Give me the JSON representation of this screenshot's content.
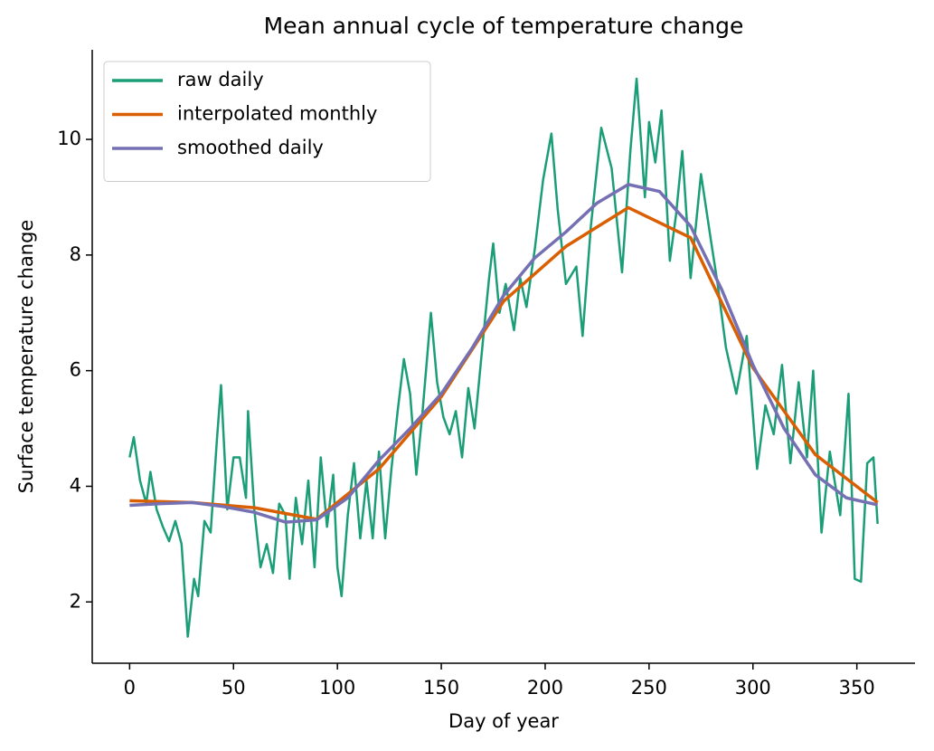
{
  "chart_data": {
    "type": "line",
    "title": "Mean annual cycle of temperature change",
    "xlabel": "Day of year",
    "ylabel": "Surface temperature change",
    "xlim": [
      -18,
      378
    ],
    "ylim": [
      0.94,
      11.55
    ],
    "xticks": [
      0,
      50,
      100,
      150,
      200,
      250,
      300,
      350
    ],
    "yticks": [
      2,
      4,
      6,
      8,
      10
    ],
    "legend": "upper left",
    "series": [
      {
        "name": "raw daily",
        "color": "#1b9e77",
        "x": [
          0,
          2,
          5,
          8,
          10,
          13,
          16,
          19,
          22,
          25,
          28,
          31,
          33,
          36,
          39,
          42,
          44,
          47,
          50,
          53,
          56,
          57,
          60,
          63,
          66,
          69,
          72,
          75,
          77,
          80,
          83,
          86,
          89,
          92,
          95,
          98,
          100,
          102,
          105,
          108,
          111,
          114,
          117,
          120,
          123,
          126,
          129,
          132,
          135,
          138,
          141,
          145,
          148,
          151,
          154,
          157,
          160,
          163,
          166,
          170,
          173,
          175,
          178,
          181,
          185,
          188,
          191,
          195,
          199,
          203,
          206,
          210,
          215,
          218,
          222,
          227,
          232,
          237,
          241,
          244,
          248,
          250,
          253,
          256,
          260,
          263,
          266,
          270,
          275,
          280,
          283,
          287,
          292,
          297,
          302,
          306,
          310,
          314,
          318,
          322,
          326,
          329,
          333,
          337,
          342,
          346,
          349,
          352,
          355,
          358,
          360
        ],
        "values": [
          4.5,
          4.85,
          4.1,
          3.7,
          4.25,
          3.6,
          3.3,
          3.05,
          3.4,
          3.0,
          1.4,
          2.4,
          2.1,
          3.4,
          3.2,
          4.8,
          5.75,
          3.6,
          4.5,
          4.5,
          3.8,
          5.3,
          3.6,
          2.6,
          3.0,
          2.5,
          3.7,
          3.5,
          2.4,
          3.8,
          3.0,
          4.1,
          2.6,
          4.5,
          3.3,
          4.2,
          2.6,
          2.1,
          3.5,
          4.4,
          3.1,
          4.1,
          3.1,
          4.6,
          3.1,
          4.3,
          5.3,
          6.2,
          5.6,
          4.2,
          5.3,
          7.0,
          5.8,
          5.2,
          4.9,
          5.3,
          4.5,
          5.7,
          5.0,
          6.5,
          7.6,
          8.2,
          7.0,
          7.5,
          6.7,
          7.6,
          7.1,
          8.1,
          9.3,
          10.1,
          8.8,
          7.5,
          7.8,
          6.6,
          8.5,
          10.2,
          9.5,
          7.7,
          9.8,
          11.05,
          9.0,
          10.3,
          9.6,
          10.5,
          7.9,
          8.7,
          9.8,
          7.6,
          9.4,
          8.2,
          7.5,
          6.4,
          5.6,
          6.6,
          4.3,
          5.4,
          4.9,
          6.1,
          4.4,
          5.8,
          4.5,
          6.0,
          3.2,
          4.6,
          3.5,
          5.6,
          2.4,
          2.35,
          4.4,
          4.5,
          3.35
        ]
      },
      {
        "name": "interpolated monthly",
        "color": "#d95f02",
        "x": [
          0,
          30,
          60,
          90,
          120,
          150,
          180,
          210,
          240,
          270,
          300,
          330,
          360
        ],
        "values": [
          3.75,
          3.72,
          3.63,
          3.43,
          4.3,
          5.55,
          7.2,
          8.15,
          8.82,
          8.3,
          6.05,
          4.55,
          3.72
        ]
      },
      {
        "name": "smoothed daily",
        "color": "#7570b3",
        "x": [
          0,
          15,
          30,
          45,
          60,
          75,
          90,
          105,
          120,
          135,
          150,
          165,
          180,
          195,
          210,
          225,
          240,
          255,
          270,
          285,
          300,
          315,
          330,
          345,
          360
        ],
        "values": [
          3.67,
          3.7,
          3.72,
          3.65,
          3.55,
          3.38,
          3.42,
          3.8,
          4.45,
          5.0,
          5.6,
          6.4,
          7.3,
          7.95,
          8.4,
          8.9,
          9.22,
          9.1,
          8.5,
          7.4,
          6.1,
          5.0,
          4.2,
          3.8,
          3.68
        ]
      }
    ]
  }
}
